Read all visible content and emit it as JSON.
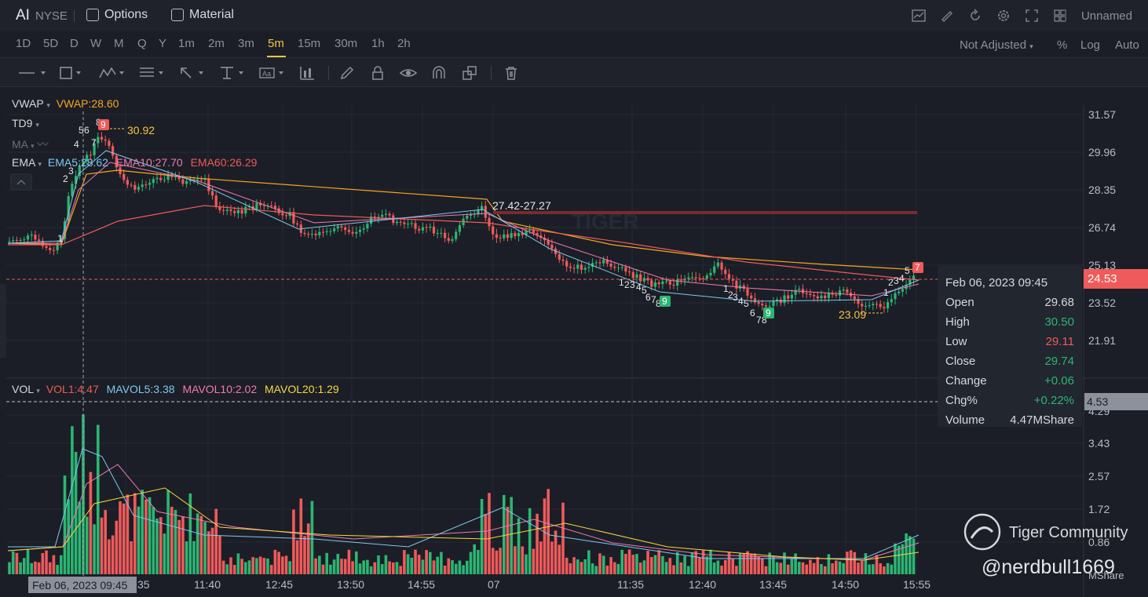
{
  "header": {
    "ticker": "AI",
    "exchange": "NYSE",
    "options_label": "Options",
    "material_label": "Material",
    "layout_name": "Unnamed",
    "icons": [
      "chart-type-icon",
      "draw-icon",
      "refresh-icon",
      "settings-icon",
      "fullscreen-icon",
      "grid-layout-icon"
    ]
  },
  "intervals": {
    "items": [
      "1D",
      "5D",
      "D",
      "W",
      "M",
      "Q",
      "Y",
      "1m",
      "2m",
      "3m",
      "5m",
      "15m",
      "30m",
      "1h",
      "2h"
    ],
    "active": "5m",
    "adjust_label": "Not Adjusted",
    "percent_label": "%",
    "log_label": "Log",
    "auto_label": "Auto"
  },
  "toolbar": {
    "icons": [
      "line-tool-icon",
      "rectangle-tool-icon",
      "pattern-tool-icon",
      "fib-tool-icon",
      "arrow-tool-icon",
      "measure-tool-icon",
      "text-tool-icon",
      "indicator-tool-icon",
      "pencil-icon",
      "lock-icon",
      "eye-icon",
      "magnet-icon",
      "clone-icon",
      "trash-icon"
    ]
  },
  "indicators": {
    "vwap_name": "VWAP",
    "vwap_value": "VWAP:28.60",
    "td9_name": "TD9",
    "ma_name": "MA",
    "ema_name": "EMA",
    "ema5": "EMA5:28.62",
    "ema10": "EMA10:27.70",
    "ema60": "EMA60:26.29",
    "vol_name": "VOL",
    "vol1": "VOL1:4.47",
    "mavol5": "MAVOL5:3.38",
    "mavol10": "MAVOL10:2.02",
    "mavol20": "MAVOL20:1.29"
  },
  "price_scale": [
    "31.57",
    "29.96",
    "28.35",
    "26.74",
    "25.13",
    "23.52",
    "21.91"
  ],
  "volume_scale": [
    "4.29",
    "3.43",
    "2.57",
    "1.72",
    "0.86"
  ],
  "volume_unit": "MShare",
  "current_price": "24.53",
  "current_volume": "4.53",
  "annotations": {
    "high_marker": "30.92",
    "range_marker": "27.42-27.27",
    "low_marker": "23.09"
  },
  "tooltip": {
    "date": "Feb 06, 2023 09:45",
    "rows": [
      {
        "label": "Open",
        "value": "29.68"
      },
      {
        "label": "High",
        "value": "30.50"
      },
      {
        "label": "Low",
        "value": "29.11"
      },
      {
        "label": "Close",
        "value": "29.74"
      },
      {
        "label": "Change",
        "value": "+0.06"
      },
      {
        "label": "Chg%",
        "value": "+0.22%"
      },
      {
        "label": "Volume",
        "value": "4.47MShare"
      }
    ]
  },
  "time_axis": {
    "flag": "Feb 06, 2023 09:45",
    "labels": [
      "35",
      "11:40",
      "12:45",
      "13:50",
      "14:55",
      "07",
      "11:35",
      "12:40",
      "13:45",
      "14:50",
      "15:55"
    ]
  },
  "watermark": {
    "community": "Tiger Community",
    "user": "@nerdbull1669"
  },
  "colors": {
    "up": "#2bb673",
    "down": "#ef5a5a",
    "vwap": "#f5a623",
    "ema5": "#7ec8f0",
    "ema10": "#f07ab0",
    "ema60": "#ef5a5a",
    "highlight": "#f5c542"
  }
}
